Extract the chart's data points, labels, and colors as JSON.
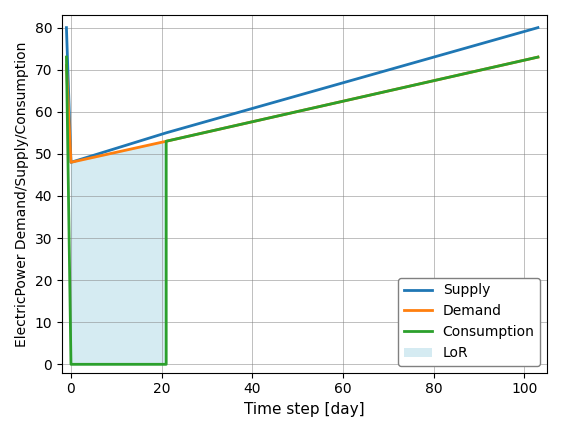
{
  "xlabel": "Time step [day]",
  "ylabel": "ElectricPower Demand/Supply/Consumption",
  "xlim": [
    -2,
    105
  ],
  "ylim": [
    -2,
    83
  ],
  "xticks": [
    0,
    20,
    40,
    60,
    80,
    100
  ],
  "yticks": [
    0,
    10,
    20,
    30,
    40,
    50,
    60,
    70,
    80
  ],
  "supply_color": "#1f77b4",
  "demand_color": "#ff7f0e",
  "consumption_color": "#2ca02c",
  "lor_color": "#add8e6",
  "lor_alpha": 0.5,
  "supply_points": [
    [
      -1,
      80
    ],
    [
      0,
      48
    ],
    [
      21,
      55
    ],
    [
      103,
      80
    ]
  ],
  "demand_points": [
    [
      -1,
      71
    ],
    [
      0,
      48
    ],
    [
      21,
      53
    ],
    [
      103,
      73
    ]
  ],
  "consumption_points": [
    [
      -1,
      73
    ],
    [
      0,
      0
    ],
    [
      21,
      0
    ],
    [
      21,
      53
    ],
    [
      103,
      73
    ]
  ]
}
